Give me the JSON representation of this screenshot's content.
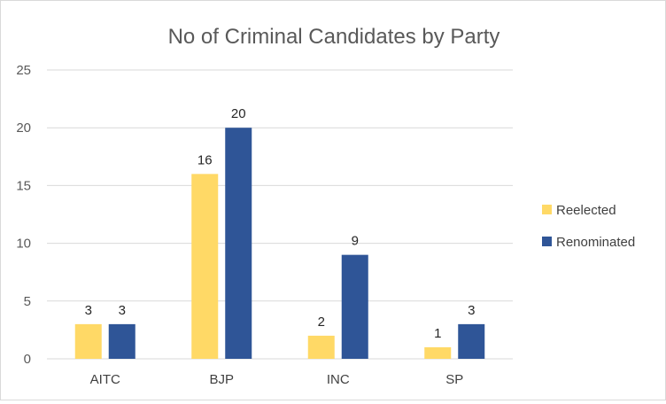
{
  "chart_data": {
    "type": "bar",
    "title": "No of Criminal Candidates by Party",
    "xlabel": "",
    "ylabel": "",
    "categories": [
      "AITC",
      "BJP",
      "INC",
      "SP"
    ],
    "series": [
      {
        "name": "Reelected",
        "values": [
          3,
          16,
          2,
          1
        ],
        "color": "#FFD966"
      },
      {
        "name": "Renominated",
        "values": [
          3,
          20,
          9,
          3
        ],
        "color": "#2F5597"
      }
    ],
    "ylim": [
      0,
      25
    ],
    "yticks": [
      0,
      5,
      10,
      15,
      20,
      25
    ],
    "grid": true,
    "legend": "right",
    "data_labels": true
  }
}
